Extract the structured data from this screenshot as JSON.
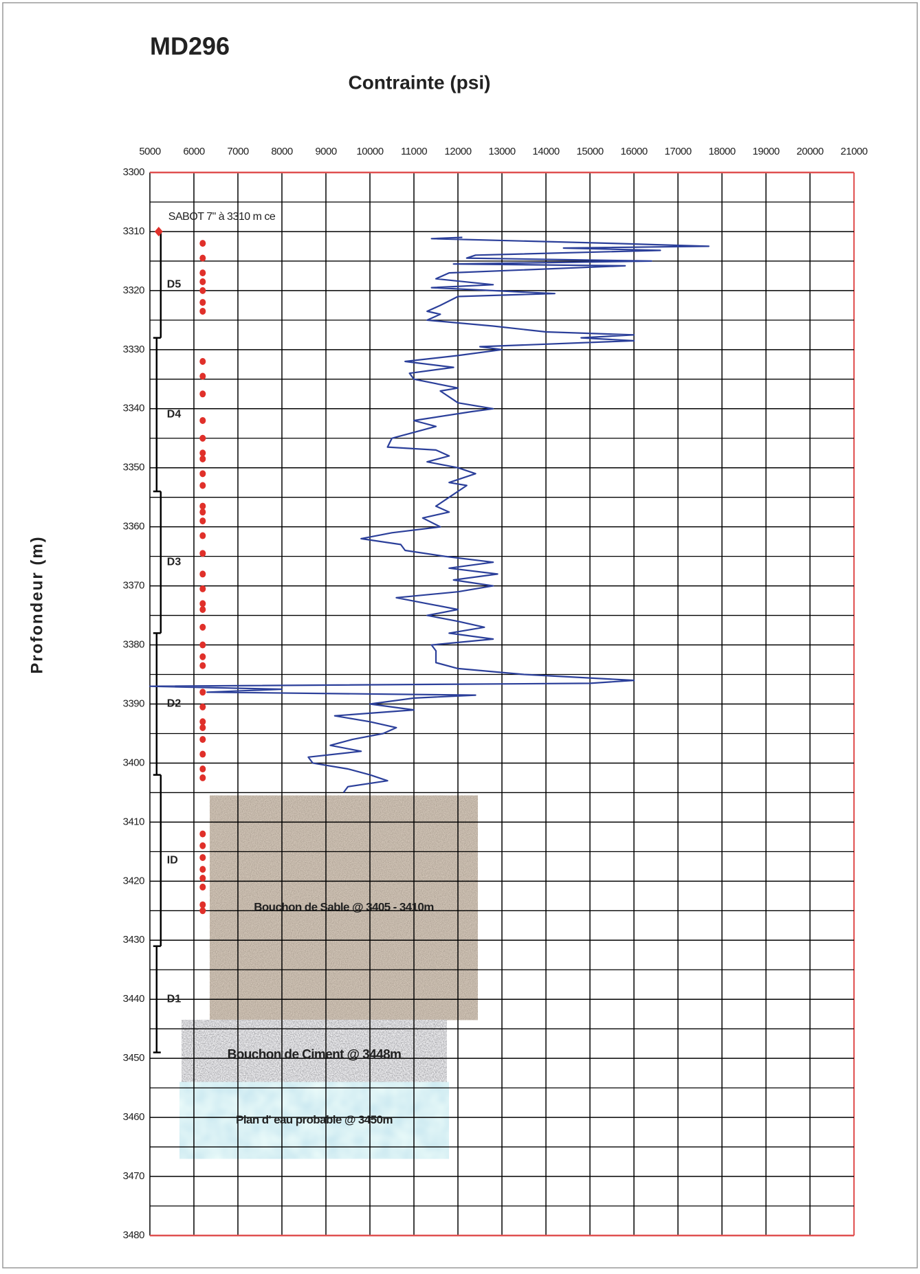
{
  "chart_data": {
    "type": "line",
    "title": "MD296",
    "x_label": "Contrainte (psi)",
    "y_label": "Profondeur (m)",
    "xlim": [
      5000,
      21000
    ],
    "xticks": [
      5000,
      6000,
      7000,
      8000,
      9000,
      10000,
      11000,
      12000,
      13000,
      14000,
      15000,
      16000,
      17000,
      18000,
      19000,
      20000,
      21000
    ],
    "ylim": [
      3300,
      3480
    ],
    "yticks": [
      3300,
      3310,
      3320,
      3330,
      3340,
      3350,
      3360,
      3370,
      3380,
      3390,
      3400,
      3410,
      3420,
      3430,
      3440,
      3450,
      3460,
      3470,
      3480
    ],
    "yminorticks": [
      3305,
      3315,
      3325,
      3335,
      3345,
      3355,
      3365,
      3375,
      3385,
      3395,
      3405,
      3415,
      3425,
      3435,
      3445,
      3455,
      3465,
      3475
    ],
    "y_inverted": true,
    "grid": true,
    "series": [
      {
        "color": "#2b3f9a",
        "x": [
          12100,
          11400,
          15500,
          17700,
          14400,
          16600,
          12400,
          12200,
          16400,
          11900,
          15800,
          11800,
          11500,
          12800,
          11400,
          14200,
          12000,
          11600,
          11300,
          11600,
          11300,
          12800,
          14000,
          16000,
          14800,
          16000,
          12500,
          13000,
          12000,
          10800,
          11900,
          10900,
          11000,
          12000,
          11600,
          11800,
          12000,
          12800,
          12300,
          11000,
          11500,
          11000,
          10500,
          10400,
          11500,
          11800,
          11300,
          12000,
          12400,
          11800,
          12200,
          11800,
          11500,
          11800,
          11200,
          11600,
          10500,
          9800,
          10700,
          10800,
          11700,
          12800,
          11800,
          12900,
          11900,
          12800,
          12000,
          10600,
          11300,
          12000,
          11300,
          12000,
          12600,
          11800,
          12800,
          11400,
          11500,
          11500,
          12000,
          13500,
          16000,
          15000,
          5000,
          8000,
          6300,
          12400,
          11000,
          10000,
          11000,
          9200,
          10000,
          10600,
          10300,
          9600,
          9100,
          9800,
          8600,
          8700,
          9500,
          10000,
          10400,
          9500,
          9400
        ],
        "y": [
          3311.0,
          3311.2,
          3312.0,
          3312.5,
          3312.8,
          3313.2,
          3314.0,
          3314.5,
          3315.0,
          3315.5,
          3315.8,
          3317.0,
          3318.0,
          3319.0,
          3319.5,
          3320.5,
          3321.0,
          3322.5,
          3323.5,
          3324.0,
          3325.0,
          3326.0,
          3327.0,
          3327.5,
          3328.0,
          3328.5,
          3329.5,
          3330.0,
          3331.0,
          3332.0,
          3333.0,
          3334.0,
          3335.0,
          3336.5,
          3337.0,
          3338.0,
          3339.0,
          3340.0,
          3340.5,
          3342.0,
          3343.0,
          3344.0,
          3345.0,
          3346.5,
          3347.0,
          3348.0,
          3349.0,
          3350.0,
          3351.0,
          3352.5,
          3353.0,
          3355.0,
          3356.5,
          3357.5,
          3358.5,
          3360.0,
          3361.0,
          3362.0,
          3363.0,
          3364.0,
          3365.0,
          3366.0,
          3367.0,
          3368.0,
          3369.0,
          3370.0,
          3371.0,
          3372.0,
          3373.0,
          3374.0,
          3375.0,
          3376.0,
          3377.0,
          3378.0,
          3379.0,
          3380.0,
          3381.0,
          3383.0,
          3384.0,
          3385.0,
          3386.0,
          3386.5,
          3387.0,
          3387.5,
          3388.0,
          3388.5,
          3389.0,
          3390.0,
          3391.0,
          3392.0,
          3393.0,
          3394.0,
          3395.0,
          3396.0,
          3397.0,
          3398.0,
          3399.0,
          3400.0,
          3401.0,
          3402.0,
          3403.0,
          3404.0,
          3405.0
        ]
      },
      {
        "color": "#e0302a",
        "x": [
          6200,
          6200,
          6200,
          6200,
          6200,
          6200,
          6200,
          6200,
          6200,
          6200,
          6200,
          6200,
          6200,
          6200,
          6200,
          6200,
          6200,
          6200,
          6200,
          6200,
          6200,
          6200,
          6200,
          6200,
          6200,
          6200,
          6200,
          6200,
          6200,
          6200,
          6200,
          6200,
          6200,
          6200,
          6200,
          6200,
          6200,
          6200,
          6200,
          6200,
          6200,
          6200,
          6200,
          6200,
          6200
        ],
        "y": [
          3312,
          3314.5,
          3317,
          3318.5,
          3320,
          3322,
          3323.5,
          3332,
          3334.5,
          3337.5,
          3342,
          3345,
          3347.5,
          3348.5,
          3351,
          3353,
          3356.5,
          3357.5,
          3359,
          3361.5,
          3364.5,
          3368,
          3370.5,
          3373,
          3374,
          3377,
          3380,
          3382,
          3383.5,
          3388,
          3390.5,
          3393,
          3394,
          3396,
          3398.5,
          3401,
          3402.5,
          3412,
          3414,
          3416,
          3418,
          3419.5,
          3421,
          3424,
          3425
        ]
      }
    ],
    "zones": [
      {
        "label": "D5",
        "top": 3310,
        "bottom": 3328
      },
      {
        "label": "D4",
        "top": 3328,
        "bottom": 3354
      },
      {
        "label": "D3",
        "top": 3354,
        "bottom": 3378
      },
      {
        "label": "D2",
        "top": 3378,
        "bottom": 3402
      },
      {
        "label": "ID",
        "top": 3402,
        "bottom": 3431
      },
      {
        "label": "D1",
        "top": 3431,
        "bottom": 3449
      }
    ],
    "shoe": {
      "label": "SABOT 7\"   à  3310 m ce",
      "depth": 3310
    },
    "plugs": [
      {
        "label": "Bouchon de Sable @ 3405 - 3410m",
        "top": 3405.5,
        "bottom": 3443.5
      },
      {
        "label": "Bouchon de Ciment @ 3448m",
        "top": 3443.5,
        "bottom": 3454
      },
      {
        "label": "Plan d' eau probable @ 3450m",
        "top": 3454,
        "bottom": 3467
      }
    ]
  }
}
